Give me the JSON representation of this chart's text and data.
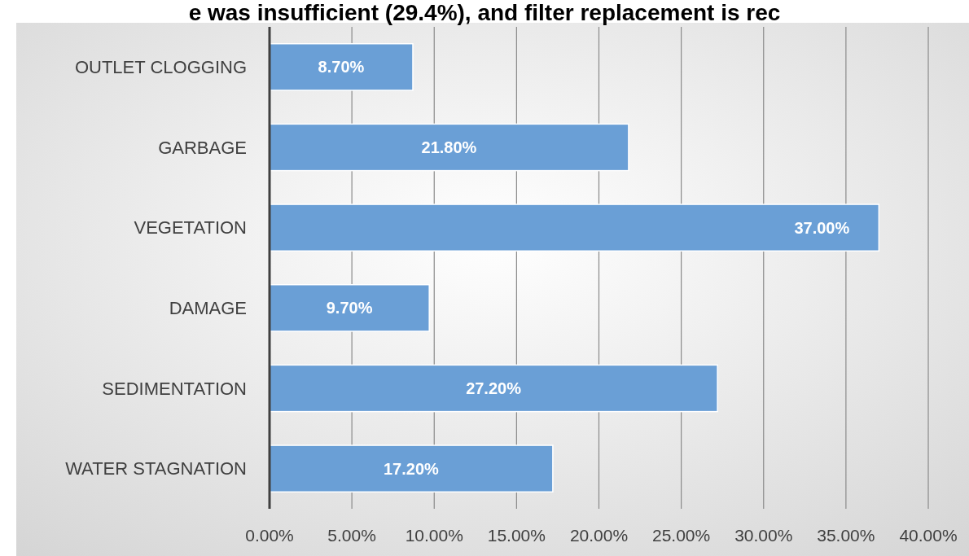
{
  "chart_data": {
    "type": "bar",
    "orientation": "horizontal",
    "title": "e was insufficient (29.4%), and filter replacement is rec",
    "categories": [
      "OUTLET CLOGGING",
      "GARBAGE",
      "VEGETATION",
      "DAMAGE",
      "SEDIMENTATION",
      "WATER STAGNATION"
    ],
    "values": [
      8.7,
      21.8,
      37.0,
      9.7,
      27.2,
      17.2
    ],
    "value_labels": [
      "8.70%",
      "21.80%",
      "37.00%",
      "9.70%",
      "27.20%",
      "17.20%"
    ],
    "color": "#6a9fd6",
    "xlim": [
      0,
      40
    ],
    "xticks": [
      {
        "value": 0,
        "label": "0.00%"
      },
      {
        "value": 5,
        "label": "5.00%"
      },
      {
        "value": 10,
        "label": "10.00%"
      },
      {
        "value": 15,
        "label": "15.00%"
      },
      {
        "value": 20,
        "label": "20.00%"
      },
      {
        "value": 25,
        "label": "25.00%"
      },
      {
        "value": 30,
        "label": "30.00%"
      },
      {
        "value": 35,
        "label": "35.00%"
      },
      {
        "value": 40,
        "label": "40.00%"
      }
    ],
    "grid": "x"
  }
}
